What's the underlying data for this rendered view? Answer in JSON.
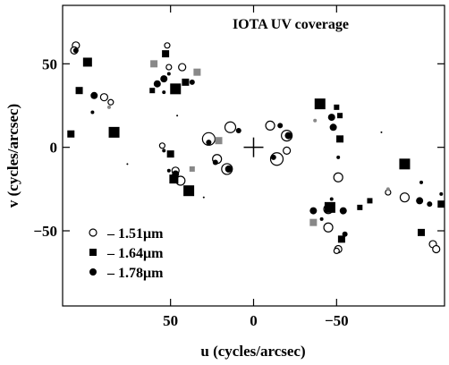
{
  "chart_data": {
    "type": "scatter",
    "title": "IOTA UV coverage",
    "xlabel": "u (cycles/arcsec)",
    "ylabel": "v (cycles/arcsec)",
    "xlim": [
      115,
      -115
    ],
    "ylim": [
      -95,
      85
    ],
    "x_ticks": [
      50,
      0,
      -50
    ],
    "x_tick_labels": [
      "50",
      "0",
      "−50"
    ],
    "y_ticks": [
      50,
      0,
      -50
    ],
    "y_tick_labels": [
      "50",
      "0",
      "−50"
    ],
    "center_marker": [
      0,
      0
    ],
    "legend": {
      "position": "bottom-left",
      "entries": [
        {
          "marker": "open-circle",
          "label": "– 1.51μm"
        },
        {
          "marker": "filled-square",
          "label": "– 1.64μm"
        },
        {
          "marker": "filled-circle",
          "label": "– 1.78μm"
        }
      ]
    },
    "colors": {
      "primary": "#000000",
      "secondary": "#888888"
    },
    "series": [
      {
        "marker": "open-circle",
        "size_scale": "radius",
        "points": [
          {
            "x": 107,
            "y": 61,
            "s": 4
          },
          {
            "x": 108,
            "y": 58,
            "s": 4
          },
          {
            "x": 90,
            "y": 30,
            "s": 4
          },
          {
            "x": 86,
            "y": 27,
            "s": 3
          },
          {
            "x": 52,
            "y": 61,
            "s": 3
          },
          {
            "x": 51,
            "y": 48,
            "s": 3
          },
          {
            "x": 43,
            "y": 48,
            "s": 4
          },
          {
            "x": 55,
            "y": 1,
            "s": 3
          },
          {
            "x": 27,
            "y": 5,
            "s": 7
          },
          {
            "x": 14,
            "y": 12,
            "s": 6
          },
          {
            "x": -20,
            "y": 7,
            "s": 6
          },
          {
            "x": -10,
            "y": 13,
            "s": 5
          },
          {
            "x": 22,
            "y": -7,
            "s": 5
          },
          {
            "x": 16,
            "y": -13,
            "s": 6
          },
          {
            "x": -14,
            "y": -7,
            "s": 7
          },
          {
            "x": -20,
            "y": -2,
            "s": 4
          },
          {
            "x": 47,
            "y": -14,
            "s": 4
          },
          {
            "x": 44,
            "y": -20,
            "s": 5
          },
          {
            "x": -51,
            "y": -18,
            "s": 5
          },
          {
            "x": -45,
            "y": -37,
            "s": 5
          },
          {
            "x": -45,
            "y": -48,
            "s": 5
          },
          {
            "x": -51,
            "y": -61,
            "s": 4
          },
          {
            "x": -50,
            "y": -62,
            "s": 3
          },
          {
            "x": -81,
            "y": -27,
            "s": 3
          },
          {
            "x": -91,
            "y": -30,
            "s": 5
          },
          {
            "x": -108,
            "y": -58,
            "s": 4
          },
          {
            "x": -110,
            "y": -61,
            "s": 4
          }
        ]
      },
      {
        "marker": "filled-square",
        "size_scale": "half-side",
        "points": [
          {
            "x": 100,
            "y": 51,
            "s": 5,
            "c": "#000000"
          },
          {
            "x": 105,
            "y": 34,
            "s": 4,
            "c": "#000000"
          },
          {
            "x": 110,
            "y": 8,
            "s": 4,
            "c": "#000000"
          },
          {
            "x": 84,
            "y": 9,
            "s": 6,
            "c": "#000000"
          },
          {
            "x": 61,
            "y": 34,
            "s": 3,
            "c": "#000000"
          },
          {
            "x": 53,
            "y": 56,
            "s": 4,
            "c": "#000000"
          },
          {
            "x": 47,
            "y": 35,
            "s": 6,
            "c": "#000000"
          },
          {
            "x": 41,
            "y": 39,
            "s": 4,
            "c": "#000000"
          },
          {
            "x": 60,
            "y": 50,
            "s": 4,
            "c": "#888888"
          },
          {
            "x": 34,
            "y": 45,
            "s": 4,
            "c": "#888888"
          },
          {
            "x": 50,
            "y": -4,
            "s": 4,
            "c": "#000000"
          },
          {
            "x": 48,
            "y": -19,
            "s": 5,
            "c": "#000000"
          },
          {
            "x": 39,
            "y": -26,
            "s": 6,
            "c": "#000000"
          },
          {
            "x": 37,
            "y": -13,
            "s": 3,
            "c": "#888888"
          },
          {
            "x": 21,
            "y": 4,
            "s": 4,
            "c": "#888888"
          },
          {
            "x": -40,
            "y": 26,
            "s": 6,
            "c": "#000000"
          },
          {
            "x": -50,
            "y": 24,
            "s": 3,
            "c": "#000000"
          },
          {
            "x": -52,
            "y": 19,
            "s": 3,
            "c": "#000000"
          },
          {
            "x": -52,
            "y": 5,
            "s": 4,
            "c": "#000000"
          },
          {
            "x": -46,
            "y": -36,
            "s": 6,
            "c": "#000000"
          },
          {
            "x": -36,
            "y": -45,
            "s": 4,
            "c": "#888888"
          },
          {
            "x": -53,
            "y": -55,
            "s": 4,
            "c": "#000000"
          },
          {
            "x": -64,
            "y": -36,
            "s": 3,
            "c": "#000000"
          },
          {
            "x": -70,
            "y": -32,
            "s": 3,
            "c": "#000000"
          },
          {
            "x": -91,
            "y": -10,
            "s": 6,
            "c": "#000000"
          },
          {
            "x": -113,
            "y": -34,
            "s": 4,
            "c": "#000000"
          },
          {
            "x": -101,
            "y": -51,
            "s": 4,
            "c": "#000000"
          }
        ]
      },
      {
        "marker": "filled-circle",
        "size_scale": "radius",
        "points": [
          {
            "x": 107,
            "y": 58,
            "s": 3,
            "c": "#000000"
          },
          {
            "x": 96,
            "y": 31,
            "s": 4,
            "c": "#000000"
          },
          {
            "x": 97,
            "y": 21,
            "s": 2,
            "c": "#000000"
          },
          {
            "x": 87,
            "y": 24,
            "s": 2,
            "c": "#888888"
          },
          {
            "x": 76,
            "y": -10,
            "s": 1,
            "c": "#000000"
          },
          {
            "x": 58,
            "y": 38,
            "s": 4,
            "c": "#000000"
          },
          {
            "x": 54,
            "y": 41,
            "s": 4,
            "c": "#000000"
          },
          {
            "x": 51,
            "y": 44,
            "s": 2,
            "c": "#000000"
          },
          {
            "x": 54,
            "y": 33,
            "s": 2,
            "c": "#000000"
          },
          {
            "x": 37,
            "y": 39,
            "s": 3,
            "c": "#000000"
          },
          {
            "x": 46,
            "y": 19,
            "s": 1,
            "c": "#000000"
          },
          {
            "x": 54,
            "y": -2,
            "s": 2,
            "c": "#000000"
          },
          {
            "x": 47,
            "y": -16,
            "s": 4,
            "c": "#000000"
          },
          {
            "x": 51,
            "y": -14,
            "s": 2,
            "c": "#000000"
          },
          {
            "x": 30,
            "y": -30,
            "s": 1,
            "c": "#000000"
          },
          {
            "x": 27,
            "y": 3,
            "s": 3,
            "c": "#000000"
          },
          {
            "x": 15,
            "y": -13,
            "s": 4,
            "c": "#000000"
          },
          {
            "x": 23,
            "y": -9,
            "s": 3,
            "c": "#000000"
          },
          {
            "x": 9,
            "y": 10,
            "s": 3,
            "c": "#000000"
          },
          {
            "x": -12,
            "y": -6,
            "s": 3,
            "c": "#000000"
          },
          {
            "x": -16,
            "y": 13,
            "s": 3,
            "c": "#000000"
          },
          {
            "x": -21,
            "y": 7,
            "s": 4,
            "c": "#000000"
          },
          {
            "x": -37,
            "y": 16,
            "s": 2,
            "c": "#888888"
          },
          {
            "x": -47,
            "y": 18,
            "s": 4,
            "c": "#000000"
          },
          {
            "x": -48,
            "y": 12,
            "s": 4,
            "c": "#000000"
          },
          {
            "x": -51,
            "y": -6,
            "s": 2,
            "c": "#000000"
          },
          {
            "x": -36,
            "y": -38,
            "s": 4,
            "c": "#000000"
          },
          {
            "x": -47,
            "y": -31,
            "s": 2,
            "c": "#000000"
          },
          {
            "x": -54,
            "y": -38,
            "s": 4,
            "c": "#000000"
          },
          {
            "x": -55,
            "y": -52,
            "s": 3,
            "c": "#000000"
          },
          {
            "x": -41,
            "y": -43,
            "s": 2,
            "c": "#000000"
          },
          {
            "x": -77,
            "y": 9,
            "s": 1,
            "c": "#000000"
          },
          {
            "x": -81,
            "y": -25,
            "s": 2,
            "c": "#888888"
          },
          {
            "x": -100,
            "y": -32,
            "s": 4,
            "c": "#000000"
          },
          {
            "x": -101,
            "y": -21,
            "s": 2,
            "c": "#000000"
          },
          {
            "x": -106,
            "y": -34,
            "s": 3,
            "c": "#000000"
          },
          {
            "x": -113,
            "y": -28,
            "s": 2,
            "c": "#000000"
          }
        ]
      }
    ]
  }
}
